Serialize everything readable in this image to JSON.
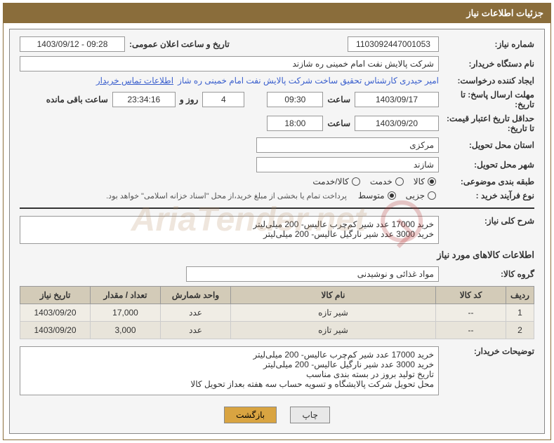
{
  "header": {
    "title": "جزئیات اطلاعات نیاز"
  },
  "fields": {
    "need_no_label": "شماره نیاز:",
    "need_no": "1103092447001053",
    "announce_label": "تاریخ و ساعت اعلان عمومی:",
    "announce_value": "1403/09/12 - 09:28",
    "buyer_label": "نام دستگاه خریدار:",
    "buyer_value": "شرکت پالایش نفت امام خمینی  ره  شازند",
    "requester_label": "ایجاد کننده درخواست:",
    "requester_value": "امیر  حیدری کارشناس تحقیق ساخت شرکت پالایش نفت امام خمینی  ره  شاز",
    "contact_link": "اطلاعات تماس خریدار",
    "reply_deadline_label": "مهلت ارسال پاسخ: تا تاریخ:",
    "reply_date": "1403/09/17",
    "time_label": "ساعت",
    "reply_time": "09:30",
    "days_count": "4",
    "days_and": "روز و",
    "countdown": "23:34:16",
    "remaining": "ساعت باقی مانده",
    "min_validity_label": "حداقل تاریخ اعتبار قیمت: تا تاریخ:",
    "min_validity_date": "1403/09/20",
    "min_validity_time": "18:00",
    "province_label": "استان محل تحویل:",
    "province_value": "مرکزی",
    "city_label": "شهر محل تحویل:",
    "city_value": "شازند",
    "category_label": "طبقه بندی موضوعی:",
    "radios_cat": {
      "goods": "کالا",
      "service": "خدمت",
      "goods_service": "کالا/خدمت"
    },
    "process_label": "نوع فرآیند خرید :",
    "radios_proc": {
      "minor": "جزیی",
      "medium": "متوسط"
    },
    "payment_note": "پرداخت تمام یا بخشی از مبلغ خرید،از محل \"اسناد خزانه اسلامی\" خواهد بود.",
    "summary_label": "شرح کلی نیاز:",
    "summary_text": "خرید 17000 عدد شیر کم‌چرب عالیس- 200 میلی‌لیتر\nخرید 3000 عدد شیر نارگیل عالیس- 200 میلی‌لیتر",
    "items_title": "اطلاعات کالاهای مورد نیاز",
    "group_label": "گروه کالا:",
    "group_value": "مواد غذائی و نوشیدنی",
    "table_headers": {
      "row": "ردیف",
      "code": "کد کالا",
      "name": "نام کالا",
      "unit": "واحد شمارش",
      "qty": "تعداد / مقدار",
      "need_date": "تاریخ نیاز"
    },
    "table_rows": [
      {
        "row": "1",
        "code": "--",
        "name": "شیر تازه",
        "unit": "عدد",
        "qty": "17,000",
        "need_date": "1403/09/20"
      },
      {
        "row": "2",
        "code": "--",
        "name": "شیر تازه",
        "unit": "عدد",
        "qty": "3,000",
        "need_date": "1403/09/20"
      }
    ],
    "buyer_notes_label": "توضیحات خریدار:",
    "buyer_notes": "خرید 17000 عدد شیر کم‌چرب عالیس- 200 میلی‌لیتر\nخرید 3000 عدد شیر نارگیل عالیس- 200 میلی‌لیتر\nتاریخ تولید بروز در بسته بندی مناسب\nمحل تحویل شرکت پالایشگاه و تسویه حساب سه هفته بعداز تحویل کالا"
  },
  "buttons": {
    "print": "چاپ",
    "back": "بازگشت"
  },
  "watermark": "AriaTender.net"
}
